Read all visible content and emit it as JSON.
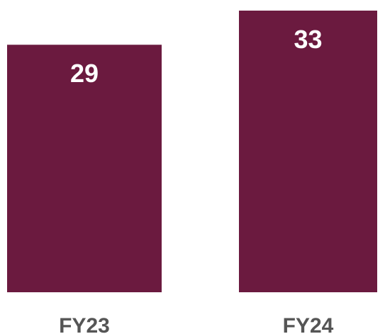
{
  "chart_data": {
    "type": "bar",
    "categories": [
      "FY23",
      "FY24"
    ],
    "values": [
      29,
      33
    ],
    "color": "#6b1a3f"
  }
}
